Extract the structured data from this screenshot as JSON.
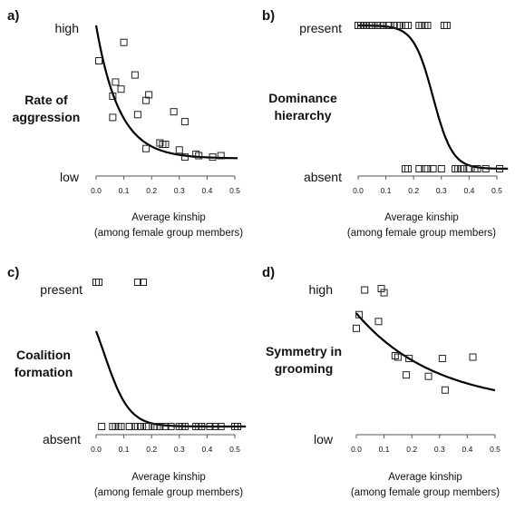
{
  "chart_data": [
    {
      "panel_label": "a)",
      "type": "scatter",
      "ylabel": [
        "Rate of",
        "aggression"
      ],
      "y_high_label": "high",
      "y_low_label": "low",
      "xlabel": [
        "Average kinship",
        "(among female group members)"
      ],
      "xlim": [
        0,
        0.5
      ],
      "xticks": [
        "0.0",
        "0.1",
        "0.2",
        "0.3",
        "0.4",
        "0.5"
      ],
      "ylim": [
        0,
        1
      ],
      "points": [
        {
          "x": 0.01,
          "y": 0.75
        },
        {
          "x": 0.1,
          "y": 0.88
        },
        {
          "x": 0.14,
          "y": 0.65
        },
        {
          "x": 0.07,
          "y": 0.6
        },
        {
          "x": 0.09,
          "y": 0.55
        },
        {
          "x": 0.06,
          "y": 0.5
        },
        {
          "x": 0.18,
          "y": 0.47
        },
        {
          "x": 0.19,
          "y": 0.51
        },
        {
          "x": 0.06,
          "y": 0.35
        },
        {
          "x": 0.15,
          "y": 0.37
        },
        {
          "x": 0.28,
          "y": 0.39
        },
        {
          "x": 0.32,
          "y": 0.32
        },
        {
          "x": 0.18,
          "y": 0.13
        },
        {
          "x": 0.23,
          "y": 0.17
        },
        {
          "x": 0.24,
          "y": 0.16
        },
        {
          "x": 0.25,
          "y": 0.16
        },
        {
          "x": 0.3,
          "y": 0.12
        },
        {
          "x": 0.32,
          "y": 0.07
        },
        {
          "x": 0.36,
          "y": 0.09
        },
        {
          "x": 0.37,
          "y": 0.08
        },
        {
          "x": 0.42,
          "y": 0.07
        },
        {
          "x": 0.45,
          "y": 0.08
        }
      ],
      "curve": {
        "form": "decay",
        "asymptote": 0.06,
        "amplitude": 0.94,
        "rate": 12,
        "x_range": [
          0,
          0.51
        ]
      }
    },
    {
      "panel_label": "b)",
      "type": "scatter",
      "ylabel": [
        "Dominance",
        "hierarchy"
      ],
      "y_high_label": "present",
      "y_low_label": "absent",
      "xlabel": [
        "Average kinship",
        "(among female group members)"
      ],
      "xlim": [
        0,
        0.5
      ],
      "xticks": [
        "0.0",
        "0.1",
        "0.2",
        "0.3",
        "0.4",
        "0.5"
      ],
      "ylim": [
        0,
        1
      ],
      "points": [
        {
          "x": 0.0,
          "y": 1
        },
        {
          "x": 0.01,
          "y": 1
        },
        {
          "x": 0.02,
          "y": 1
        },
        {
          "x": 0.03,
          "y": 1
        },
        {
          "x": 0.04,
          "y": 1
        },
        {
          "x": 0.05,
          "y": 1
        },
        {
          "x": 0.07,
          "y": 1
        },
        {
          "x": 0.08,
          "y": 1
        },
        {
          "x": 0.09,
          "y": 1
        },
        {
          "x": 0.11,
          "y": 1
        },
        {
          "x": 0.13,
          "y": 1
        },
        {
          "x": 0.14,
          "y": 1
        },
        {
          "x": 0.15,
          "y": 1
        },
        {
          "x": 0.17,
          "y": 1
        },
        {
          "x": 0.18,
          "y": 1
        },
        {
          "x": 0.22,
          "y": 1
        },
        {
          "x": 0.23,
          "y": 1
        },
        {
          "x": 0.24,
          "y": 1
        },
        {
          "x": 0.25,
          "y": 1
        },
        {
          "x": 0.31,
          "y": 1
        },
        {
          "x": 0.32,
          "y": 1
        },
        {
          "x": 0.17,
          "y": 0
        },
        {
          "x": 0.18,
          "y": 0
        },
        {
          "x": 0.22,
          "y": 0
        },
        {
          "x": 0.24,
          "y": 0
        },
        {
          "x": 0.25,
          "y": 0
        },
        {
          "x": 0.27,
          "y": 0
        },
        {
          "x": 0.3,
          "y": 0
        },
        {
          "x": 0.35,
          "y": 0
        },
        {
          "x": 0.36,
          "y": 0
        },
        {
          "x": 0.37,
          "y": 0
        },
        {
          "x": 0.38,
          "y": 0
        },
        {
          "x": 0.4,
          "y": 0
        },
        {
          "x": 0.42,
          "y": 0
        },
        {
          "x": 0.43,
          "y": 0
        },
        {
          "x": 0.46,
          "y": 0
        },
        {
          "x": 0.51,
          "y": 0
        }
      ],
      "curve": {
        "form": "logistic",
        "midpoint": 0.27,
        "scale": 0.035,
        "x_range": [
          0,
          0.54
        ]
      }
    },
    {
      "panel_label": "c)",
      "type": "scatter",
      "ylabel": [
        "Coalition",
        "formation"
      ],
      "y_high_label": "present",
      "y_low_label": "absent",
      "xlabel": [
        "Average kinship",
        "(among female group members)"
      ],
      "xlim": [
        0,
        0.5
      ],
      "xticks": [
        "0.0",
        "0.1",
        "0.2",
        "0.3",
        "0.4",
        "0.5"
      ],
      "ylim": [
        0,
        1
      ],
      "points": [
        {
          "x": 0.0,
          "y": 1
        },
        {
          "x": 0.01,
          "y": 1
        },
        {
          "x": 0.15,
          "y": 1
        },
        {
          "x": 0.17,
          "y": 1
        },
        {
          "x": 0.02,
          "y": 0
        },
        {
          "x": 0.06,
          "y": 0
        },
        {
          "x": 0.07,
          "y": 0
        },
        {
          "x": 0.08,
          "y": 0
        },
        {
          "x": 0.09,
          "y": 0
        },
        {
          "x": 0.12,
          "y": 0
        },
        {
          "x": 0.14,
          "y": 0
        },
        {
          "x": 0.15,
          "y": 0
        },
        {
          "x": 0.16,
          "y": 0
        },
        {
          "x": 0.18,
          "y": 0
        },
        {
          "x": 0.19,
          "y": 0
        },
        {
          "x": 0.21,
          "y": 0
        },
        {
          "x": 0.22,
          "y": 0
        },
        {
          "x": 0.23,
          "y": 0
        },
        {
          "x": 0.25,
          "y": 0
        },
        {
          "x": 0.27,
          "y": 0
        },
        {
          "x": 0.3,
          "y": 0
        },
        {
          "x": 0.31,
          "y": 0
        },
        {
          "x": 0.32,
          "y": 0
        },
        {
          "x": 0.36,
          "y": 0
        },
        {
          "x": 0.37,
          "y": 0
        },
        {
          "x": 0.38,
          "y": 0
        },
        {
          "x": 0.41,
          "y": 0
        },
        {
          "x": 0.43,
          "y": 0
        },
        {
          "x": 0.45,
          "y": 0
        },
        {
          "x": 0.5,
          "y": 0
        },
        {
          "x": 0.51,
          "y": 0
        }
      ],
      "curve": {
        "form": "logistic",
        "midpoint": 0.03,
        "scale": 0.045,
        "x_range": [
          0,
          0.54
        ]
      }
    },
    {
      "panel_label": "d)",
      "type": "scatter",
      "ylabel": [
        "Symmetry in",
        "grooming"
      ],
      "y_high_label": "high",
      "y_low_label": "low",
      "xlabel": [
        "Average kinship",
        "(among female group members)"
      ],
      "xlim": [
        0,
        0.5
      ],
      "xticks": [
        "0.0",
        "0.1",
        "0.2",
        "0.3",
        "0.4",
        "0.5"
      ],
      "ylim": [
        0,
        1
      ],
      "points": [
        {
          "x": 0.03,
          "y": 0.95
        },
        {
          "x": 0.09,
          "y": 0.96
        },
        {
          "x": 0.1,
          "y": 0.93
        },
        {
          "x": 0.01,
          "y": 0.77
        },
        {
          "x": 0.08,
          "y": 0.72
        },
        {
          "x": 0.0,
          "y": 0.67
        },
        {
          "x": 0.14,
          "y": 0.47
        },
        {
          "x": 0.15,
          "y": 0.46
        },
        {
          "x": 0.19,
          "y": 0.45
        },
        {
          "x": 0.31,
          "y": 0.45
        },
        {
          "x": 0.42,
          "y": 0.46
        },
        {
          "x": 0.18,
          "y": 0.33
        },
        {
          "x": 0.26,
          "y": 0.32
        },
        {
          "x": 0.32,
          "y": 0.22
        }
      ],
      "curve": {
        "form": "decay",
        "asymptote": 0.1,
        "amplitude": 0.68,
        "rate": 3.5,
        "x_range": [
          0,
          0.5
        ]
      }
    }
  ]
}
